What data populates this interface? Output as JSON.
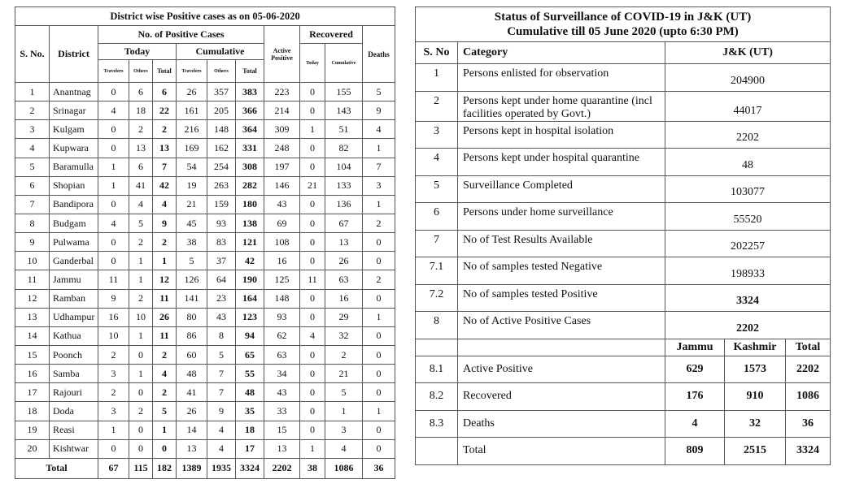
{
  "left_table": {
    "title": "District wise Positive cases as on 05-06-2020",
    "headers": {
      "sno": "S. No.",
      "district": "District",
      "positive_cases": "No. of Positive Cases",
      "today": "Today",
      "cumulative": "Cumulative",
      "travelers": "Travelers",
      "others": "Others",
      "total": "Total",
      "active_positive": "Active Positive",
      "recovered": "Recovered",
      "rec_today": "Today",
      "rec_cumulative": "Cumulative",
      "deaths": "Deaths"
    },
    "rows": [
      [
        "1",
        "Anantnag",
        "0",
        "6",
        "6",
        "26",
        "357",
        "383",
        "223",
        "0",
        "155",
        "5"
      ],
      [
        "2",
        "Srinagar",
        "4",
        "18",
        "22",
        "161",
        "205",
        "366",
        "214",
        "0",
        "143",
        "9"
      ],
      [
        "3",
        "Kulgam",
        "0",
        "2",
        "2",
        "216",
        "148",
        "364",
        "309",
        "1",
        "51",
        "4"
      ],
      [
        "4",
        "Kupwara",
        "0",
        "13",
        "13",
        "169",
        "162",
        "331",
        "248",
        "0",
        "82",
        "1"
      ],
      [
        "5",
        "Baramulla",
        "1",
        "6",
        "7",
        "54",
        "254",
        "308",
        "197",
        "0",
        "104",
        "7"
      ],
      [
        "6",
        "Shopian",
        "1",
        "41",
        "42",
        "19",
        "263",
        "282",
        "146",
        "21",
        "133",
        "3"
      ],
      [
        "7",
        "Bandipora",
        "0",
        "4",
        "4",
        "21",
        "159",
        "180",
        "43",
        "0",
        "136",
        "1"
      ],
      [
        "8",
        "Budgam",
        "4",
        "5",
        "9",
        "45",
        "93",
        "138",
        "69",
        "0",
        "67",
        "2"
      ],
      [
        "9",
        "Pulwama",
        "0",
        "2",
        "2",
        "38",
        "83",
        "121",
        "108",
        "0",
        "13",
        "0"
      ],
      [
        "10",
        "Ganderbal",
        "0",
        "1",
        "1",
        "5",
        "37",
        "42",
        "16",
        "0",
        "26",
        "0"
      ],
      [
        "11",
        "Jammu",
        "11",
        "1",
        "12",
        "126",
        "64",
        "190",
        "125",
        "11",
        "63",
        "2"
      ],
      [
        "12",
        "Ramban",
        "9",
        "2",
        "11",
        "141",
        "23",
        "164",
        "148",
        "0",
        "16",
        "0"
      ],
      [
        "13",
        "Udhampur",
        "16",
        "10",
        "26",
        "80",
        "43",
        "123",
        "93",
        "0",
        "29",
        "1"
      ],
      [
        "14",
        "Kathua",
        "10",
        "1",
        "11",
        "86",
        "8",
        "94",
        "62",
        "4",
        "32",
        "0"
      ],
      [
        "15",
        "Poonch",
        "2",
        "0",
        "2",
        "60",
        "5",
        "65",
        "63",
        "0",
        "2",
        "0"
      ],
      [
        "16",
        "Samba",
        "3",
        "1",
        "4",
        "48",
        "7",
        "55",
        "34",
        "0",
        "21",
        "0"
      ],
      [
        "17",
        "Rajouri",
        "2",
        "0",
        "2",
        "41",
        "7",
        "48",
        "43",
        "0",
        "5",
        "0"
      ],
      [
        "18",
        "Doda",
        "3",
        "2",
        "5",
        "26",
        "9",
        "35",
        "33",
        "0",
        "1",
        "1"
      ],
      [
        "19",
        "Reasi",
        "1",
        "0",
        "1",
        "14",
        "4",
        "18",
        "15",
        "0",
        "3",
        "0"
      ],
      [
        "20",
        "Kishtwar",
        "0",
        "0",
        "0",
        "13",
        "4",
        "17",
        "13",
        "1",
        "4",
        "0"
      ]
    ],
    "total": [
      "Total",
      "67",
      "115",
      "182",
      "1389",
      "1935",
      "3324",
      "2202",
      "38",
      "1086",
      "36"
    ]
  },
  "right_table": {
    "title_line1": "Status of Surveillance of COVID-19 in J&K (UT)",
    "title_line2": "Cumulative till 05 June 2020 (upto 6:30 PM)",
    "headers": {
      "sno": "S. No",
      "category": "Category",
      "value": "J&K (UT)"
    },
    "rows": [
      {
        "sno": "1",
        "category": "Persons enlisted for observation",
        "value": "204900"
      },
      {
        "sno": "2",
        "category": "Persons kept under home quarantine (incl facilities operated by Govt.)",
        "value": "44017"
      },
      {
        "sno": "3",
        "category": "Persons kept in hospital isolation",
        "value": "2202"
      },
      {
        "sno": "4",
        "category": "Persons kept under hospital quarantine",
        "value": "48"
      },
      {
        "sno": "5",
        "category": "Surveillance Completed",
        "value": "103077"
      },
      {
        "sno": "6",
        "category": "Persons under home surveillance",
        "value": "55520"
      },
      {
        "sno": "7",
        "category": "No of Test Results Available",
        "value": "202257"
      },
      {
        "sno": "7.1",
        "category": "No of samples tested Negative",
        "value": "198933"
      },
      {
        "sno": "7.2",
        "category": "No of samples tested Positive",
        "value": "3324",
        "bold": true
      },
      {
        "sno": "8",
        "category": "No of Active Positive Cases",
        "value": "2202",
        "bold": true
      }
    ],
    "region_headers": [
      "Jammu",
      "Kashmir",
      "Total"
    ],
    "region_rows": [
      {
        "sno": "8.1",
        "category": "Active Positive",
        "values": [
          "629",
          "1573",
          "2202"
        ]
      },
      {
        "sno": "8.2",
        "category": "Recovered",
        "values": [
          "176",
          "910",
          "1086"
        ]
      },
      {
        "sno": "8.3",
        "category": "Deaths",
        "values": [
          "4",
          "32",
          "36"
        ]
      },
      {
        "sno": "",
        "category": "Total",
        "values": [
          "809",
          "2515",
          "3324"
        ]
      }
    ]
  }
}
